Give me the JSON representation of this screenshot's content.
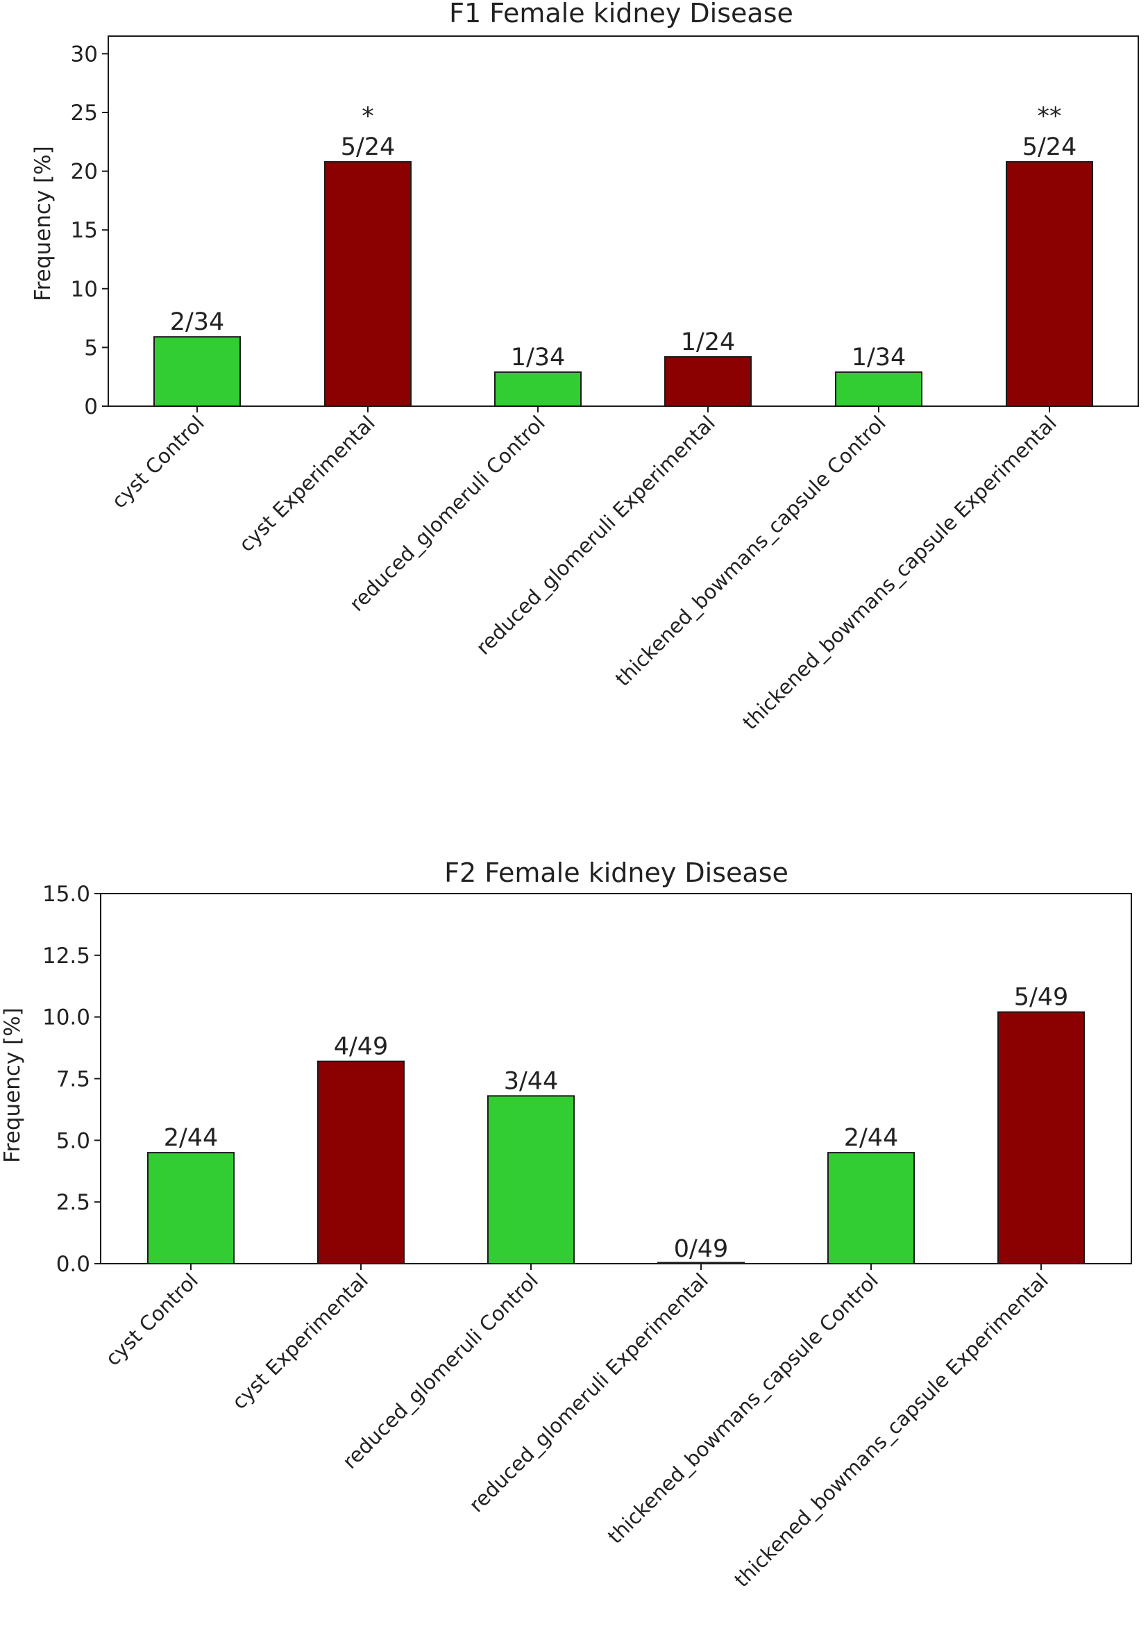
{
  "colors": {
    "control": "#32cd32",
    "experimental": "#8b0000",
    "edge": "#1a1a1a"
  },
  "chart_data": [
    {
      "type": "bar",
      "title": "F1 Female kidney Disease",
      "xlabel": "",
      "ylabel": "Frequency [%]",
      "ylim": [
        0,
        31.5
      ],
      "yticks": [
        0,
        5,
        10,
        15,
        20,
        25,
        30
      ],
      "ytick_labels": [
        "0",
        "5",
        "10",
        "15",
        "20",
        "25",
        "30"
      ],
      "categories": [
        "cyst Control",
        "cyst Experimental",
        "reduced_glomeruli Control",
        "reduced_glomeruli Experimental",
        "thickened_bowmans_capsule Control",
        "thickened_bowmans_capsule Experimental"
      ],
      "groups": [
        "control",
        "experimental",
        "control",
        "experimental",
        "control",
        "experimental"
      ],
      "values": [
        5.9,
        20.8,
        2.9,
        4.2,
        2.9,
        20.8
      ],
      "labels": [
        "2/34",
        "5/24",
        "1/34",
        "1/24",
        "1/34",
        "5/24"
      ],
      "significance": [
        "",
        "*",
        "",
        "",
        "",
        "**"
      ],
      "grid": false
    },
    {
      "type": "bar",
      "title": "F2 Female kidney Disease",
      "xlabel": "",
      "ylabel": "Frequency [%]",
      "ylim": [
        0,
        15.0
      ],
      "yticks": [
        0,
        2.5,
        5,
        7.5,
        10,
        12.5,
        15
      ],
      "ytick_labels": [
        "0.0",
        "2.5",
        "5.0",
        "7.5",
        "10.0",
        "12.5",
        "15.0"
      ],
      "categories": [
        "cyst Control",
        "cyst Experimental",
        "reduced_glomeruli Control",
        "reduced_glomeruli Experimental",
        "thickened_bowmans_capsule Control",
        "thickened_bowmans_capsule Experimental"
      ],
      "groups": [
        "control",
        "experimental",
        "control",
        "experimental",
        "control",
        "experimental"
      ],
      "values": [
        4.5,
        8.2,
        6.8,
        0.0,
        4.5,
        10.2
      ],
      "labels": [
        "2/44",
        "4/49",
        "3/44",
        "0/49",
        "2/44",
        "5/49"
      ],
      "significance": [
        "",
        "",
        "",
        "",
        "",
        ""
      ],
      "grid": false
    }
  ]
}
